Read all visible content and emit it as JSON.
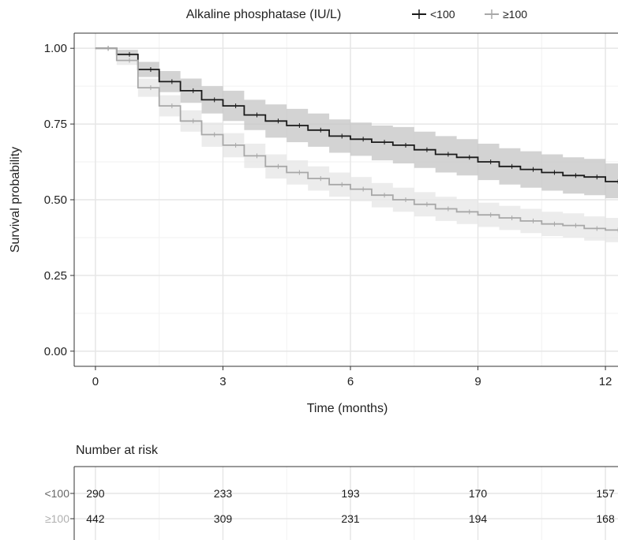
{
  "legend": {
    "title": "Alkaline phosphatase (IU/L)",
    "items": [
      {
        "label": "<100",
        "color": "#1a1a1a"
      },
      {
        "label": "≥100",
        "color": "#a8a8a8"
      }
    ]
  },
  "chart_data": {
    "type": "line",
    "xlabel": "Time (months)",
    "ylabel": "Survival probability",
    "xlim": [
      -0.5,
      12.5
    ],
    "ylim": [
      -0.05,
      1.05
    ],
    "xticks": [
      0,
      3,
      6,
      9,
      12
    ],
    "yticks": [
      0.0,
      0.25,
      0.5,
      0.75,
      1.0
    ],
    "ytick_labels": [
      "0.00",
      "0.25",
      "0.50",
      "0.75",
      "1.00"
    ],
    "grid": true,
    "legend_position": "top",
    "series": [
      {
        "name": "<100",
        "color": "#1a1a1a",
        "band_color": "#c4c4c4",
        "x": [
          0,
          0.5,
          1,
          1.5,
          2,
          2.5,
          3,
          3.5,
          4,
          4.5,
          5,
          5.5,
          6,
          6.5,
          7,
          7.5,
          8,
          8.5,
          9,
          9.5,
          10,
          10.5,
          11,
          11.5,
          12,
          12.5
        ],
        "y": [
          1.0,
          0.98,
          0.93,
          0.89,
          0.86,
          0.83,
          0.81,
          0.78,
          0.76,
          0.745,
          0.73,
          0.71,
          0.7,
          0.69,
          0.68,
          0.665,
          0.65,
          0.64,
          0.625,
          0.61,
          0.6,
          0.59,
          0.58,
          0.575,
          0.56,
          0.555
        ],
        "lower": [
          1.0,
          0.965,
          0.905,
          0.855,
          0.82,
          0.785,
          0.76,
          0.73,
          0.705,
          0.69,
          0.675,
          0.655,
          0.645,
          0.63,
          0.62,
          0.605,
          0.59,
          0.58,
          0.565,
          0.55,
          0.54,
          0.53,
          0.52,
          0.515,
          0.505,
          0.5
        ],
        "upper": [
          1.0,
          0.995,
          0.955,
          0.925,
          0.9,
          0.875,
          0.86,
          0.83,
          0.815,
          0.8,
          0.785,
          0.765,
          0.755,
          0.745,
          0.74,
          0.725,
          0.71,
          0.7,
          0.685,
          0.67,
          0.66,
          0.65,
          0.64,
          0.635,
          0.62,
          0.615
        ]
      },
      {
        "name": "≥100",
        "color": "#a8a8a8",
        "band_color": "#e6e6e6",
        "x": [
          0,
          0.5,
          1,
          1.5,
          2,
          2.5,
          3,
          3.5,
          4,
          4.5,
          5,
          5.5,
          6,
          6.5,
          7,
          7.5,
          8,
          8.5,
          9,
          9.5,
          10,
          10.5,
          11,
          11.5,
          12,
          12.5
        ],
        "y": [
          1.0,
          0.96,
          0.87,
          0.81,
          0.76,
          0.715,
          0.68,
          0.645,
          0.61,
          0.59,
          0.57,
          0.55,
          0.535,
          0.515,
          0.5,
          0.485,
          0.47,
          0.46,
          0.45,
          0.44,
          0.43,
          0.42,
          0.415,
          0.405,
          0.4,
          0.39
        ],
        "lower": [
          1.0,
          0.945,
          0.84,
          0.775,
          0.725,
          0.675,
          0.64,
          0.605,
          0.57,
          0.55,
          0.53,
          0.51,
          0.495,
          0.475,
          0.46,
          0.445,
          0.43,
          0.42,
          0.41,
          0.4,
          0.39,
          0.38,
          0.375,
          0.365,
          0.36,
          0.35
        ],
        "upper": [
          1.0,
          0.975,
          0.9,
          0.845,
          0.795,
          0.755,
          0.72,
          0.685,
          0.65,
          0.63,
          0.61,
          0.59,
          0.575,
          0.555,
          0.54,
          0.525,
          0.51,
          0.5,
          0.49,
          0.48,
          0.47,
          0.46,
          0.455,
          0.445,
          0.44,
          0.43
        ]
      }
    ]
  },
  "risk_table": {
    "title": "Number at risk",
    "times": [
      0,
      3,
      6,
      9,
      12
    ],
    "rows": [
      {
        "label": "<100",
        "color": "#1a1a1a",
        "label_color": "#666666",
        "values": [
          "290",
          "233",
          "193",
          "170",
          "157"
        ]
      },
      {
        "label": "≥100",
        "color": "#1a1a1a",
        "label_color": "#b0b0b0",
        "values": [
          "442",
          "309",
          "231",
          "194",
          "168"
        ]
      }
    ]
  }
}
